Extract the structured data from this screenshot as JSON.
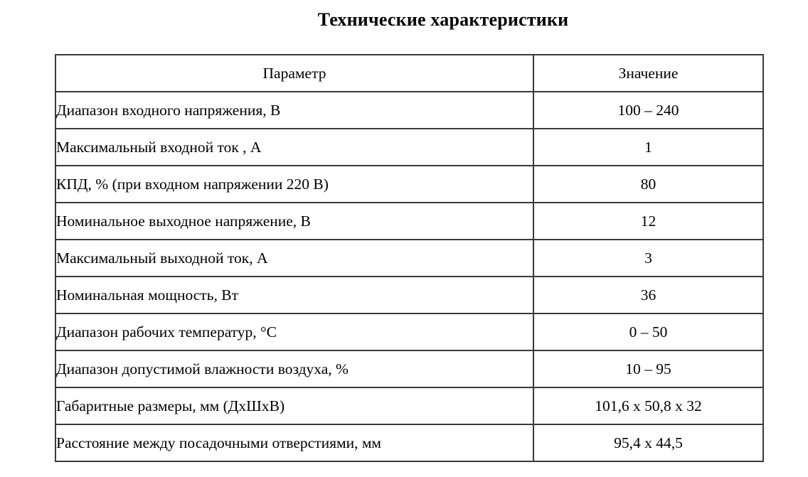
{
  "title": "Технические характеристики",
  "table": {
    "headers": [
      "Параметр",
      "Значение"
    ],
    "rows": [
      [
        "Диапазон входного напряжения, В",
        "100 – 240"
      ],
      [
        "Максимальный входной ток , А",
        "1"
      ],
      [
        "КПД, % (при входном напряжении 220 В)",
        "80"
      ],
      [
        "Номинальное выходное напряжение, В",
        "12"
      ],
      [
        "Максимальный выходной ток, А",
        "3"
      ],
      [
        "Номинальная мощность, Вт",
        "36"
      ],
      [
        "Диапазон рабочих температур, °С",
        "0 – 50"
      ],
      [
        "Диапазон допустимой влажности воздуха, %",
        "10 – 95"
      ],
      [
        "Габаритные размеры, мм (ДхШхВ)",
        "101,6 x 50,8 x 32"
      ],
      [
        "Расстояние между посадочными отверстиями, мм",
        "95,4 x 44,5"
      ]
    ]
  },
  "colors": {
    "background": "#ffffff",
    "text": "#000000",
    "border": "#3a3a3a"
  }
}
